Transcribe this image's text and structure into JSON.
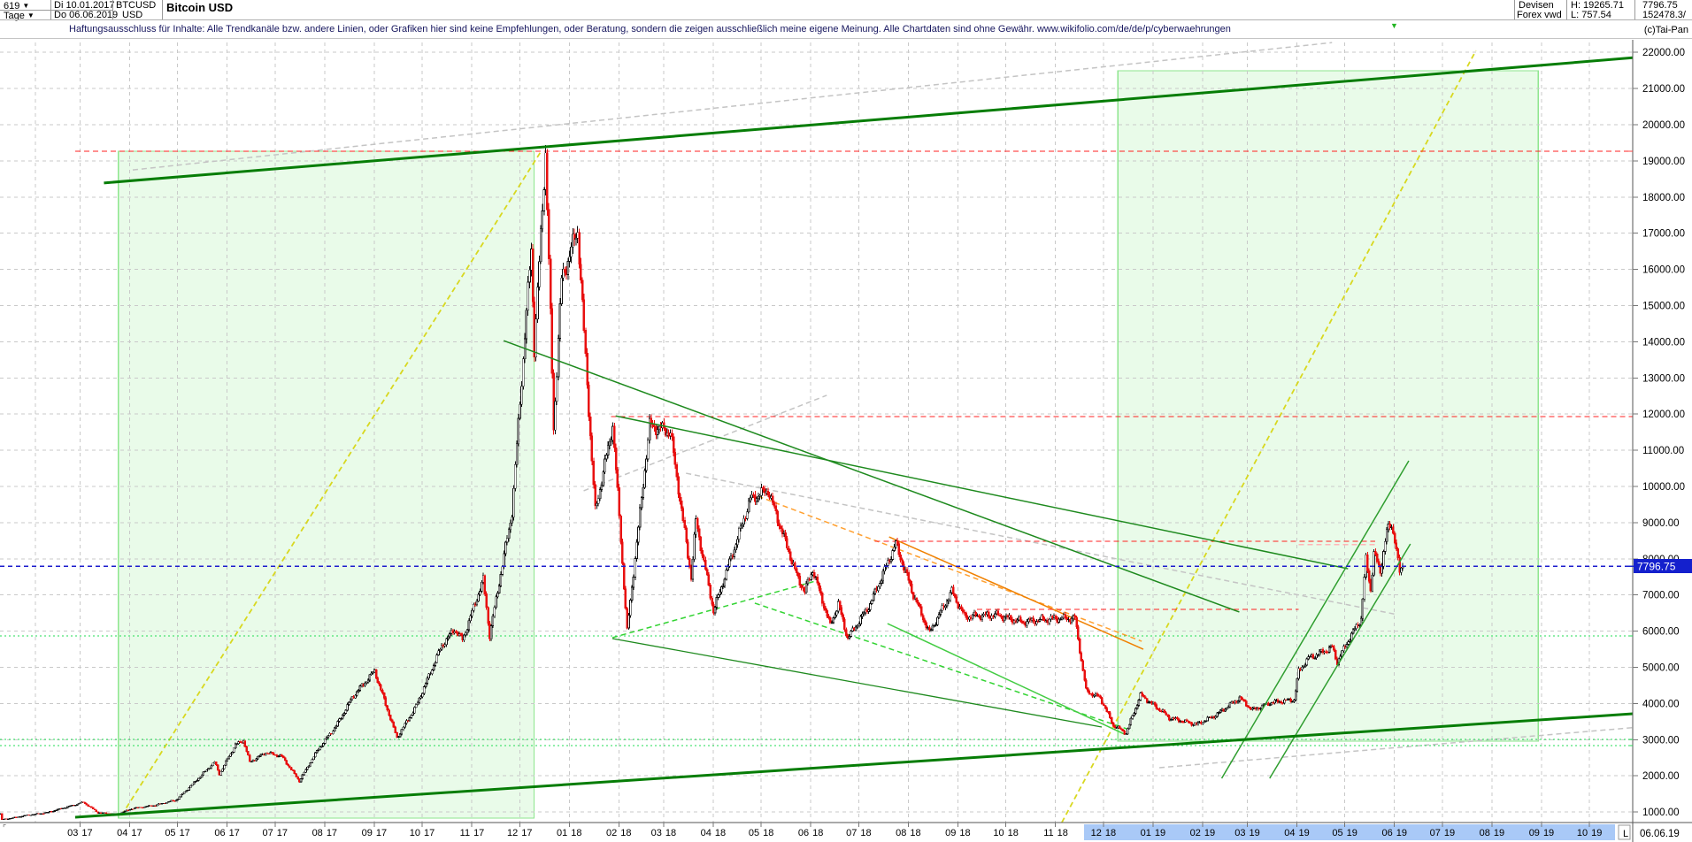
{
  "header": {
    "bars_count": "619",
    "period": "Tage",
    "date_from": "Di 10.01.2017",
    "date_to": "Do 06.06.2019",
    "symbol": "BTCUSD",
    "currency": "USD",
    "title": "Bitcoin USD",
    "category": "Devisen",
    "feed": "Forex vwd",
    "high_label": "H: 19265.71",
    "low_label": "L: 757.54",
    "last_price_text": "7796.75",
    "volume_text": "152478.3/",
    "copyright": "(c)Tai-Pan"
  },
  "disclaimer": "Haftungsausschluss für Inhalte: Alle Trendkanäle bzw. andere Linien, oder Grafiken hier sind keine Empfehlungen, oder Beratung, sondern die zeigen ausschließlich meine eigene Meinung. Alle Chartdaten sind ohne Gewähr.  www.wikifolio.com/de/de/p/cyberwaehrungen",
  "x_axis": {
    "months": [
      {
        "m": "03",
        "y": "17"
      },
      {
        "m": "04",
        "y": "17"
      },
      {
        "m": "05",
        "y": "17"
      },
      {
        "m": "06",
        "y": "17"
      },
      {
        "m": "07",
        "y": "17"
      },
      {
        "m": "08",
        "y": "17"
      },
      {
        "m": "09",
        "y": "17"
      },
      {
        "m": "10",
        "y": "17"
      },
      {
        "m": "11",
        "y": "17"
      },
      {
        "m": "12",
        "y": "17"
      },
      {
        "m": "01",
        "y": "18"
      },
      {
        "m": "02",
        "y": "18"
      },
      {
        "m": "03",
        "y": "18"
      },
      {
        "m": "04",
        "y": "18"
      },
      {
        "m": "05",
        "y": "18"
      },
      {
        "m": "06",
        "y": "18"
      },
      {
        "m": "07",
        "y": "18"
      },
      {
        "m": "08",
        "y": "18"
      },
      {
        "m": "09",
        "y": "18"
      },
      {
        "m": "10",
        "y": "18"
      },
      {
        "m": "11",
        "y": "18"
      },
      {
        "m": "12",
        "y": "18"
      },
      {
        "m": "01",
        "y": "19"
      },
      {
        "m": "02",
        "y": "19"
      },
      {
        "m": "03",
        "y": "19"
      },
      {
        "m": "04",
        "y": "19"
      },
      {
        "m": "05",
        "y": "19"
      },
      {
        "m": "06",
        "y": "19"
      },
      {
        "m": "07",
        "y": "19"
      },
      {
        "m": "08",
        "y": "19"
      },
      {
        "m": "09",
        "y": "19"
      },
      {
        "m": "10",
        "y": "19"
      }
    ],
    "end_label": "06.06.19",
    "low_marker": "L",
    "highlight_d1": 678,
    "highlight_d2": 1010
  },
  "y_axis": {
    "min": 1000,
    "max": 22000,
    "step": 1000,
    "last_price": 7796.75,
    "last_price_label": "7796.75"
  },
  "chart_data": {
    "type": "candlestick",
    "title": "Bitcoin USD",
    "start_date": "2017-01-10",
    "end_date": "2019-06-06",
    "high": 19265.71,
    "low": 757.54,
    "last": 7796.75,
    "ylim": [
      1000,
      22000
    ],
    "keypoints": [
      [
        "2017-01-10",
        950
      ],
      [
        "2017-01-11",
        790
      ],
      [
        "2017-01-17",
        830
      ],
      [
        "2017-01-25",
        900
      ],
      [
        "2017-02-09",
        990
      ],
      [
        "2017-02-24",
        1180
      ],
      [
        "2017-03-03",
        1270
      ],
      [
        "2017-03-12",
        985
      ],
      [
        "2017-03-24",
        935
      ],
      [
        "2017-04-02",
        1090
      ],
      [
        "2017-04-17",
        1190
      ],
      [
        "2017-04-30",
        1330
      ],
      [
        "2017-05-10",
        1760
      ],
      [
        "2017-05-24",
        2380
      ],
      [
        "2017-05-27",
        2050
      ],
      [
        "2017-06-06",
        2860
      ],
      [
        "2017-06-11",
        2980
      ],
      [
        "2017-06-15",
        2380
      ],
      [
        "2017-06-25",
        2640
      ],
      [
        "2017-07-05",
        2540
      ],
      [
        "2017-07-16",
        1860
      ],
      [
        "2017-07-28",
        2750
      ],
      [
        "2017-08-08",
        3380
      ],
      [
        "2017-08-18",
        4160
      ],
      [
        "2017-09-01",
        4900
      ],
      [
        "2017-09-15",
        3050
      ],
      [
        "2017-09-27",
        3920
      ],
      [
        "2017-10-13",
        5600
      ],
      [
        "2017-10-21",
        6050
      ],
      [
        "2017-10-26",
        5750
      ],
      [
        "2017-11-08",
        7420
      ],
      [
        "2017-11-12",
        5880
      ],
      [
        "2017-11-26",
        9300
      ],
      [
        "2017-12-08",
        16600
      ],
      [
        "2017-12-10",
        13800
      ],
      [
        "2017-12-17",
        19265.71
      ],
      [
        "2017-12-22",
        11600
      ],
      [
        "2017-12-27",
        15700
      ],
      [
        "2018-01-06",
        17100
      ],
      [
        "2018-01-17",
        9300
      ],
      [
        "2018-01-28",
        11700
      ],
      [
        "2018-02-06",
        6000
      ],
      [
        "2018-02-20",
        11700
      ],
      [
        "2018-03-05",
        11500
      ],
      [
        "2018-03-18",
        7500
      ],
      [
        "2018-03-21",
        9050
      ],
      [
        "2018-04-01",
        6550
      ],
      [
        "2018-04-24",
        9650
      ],
      [
        "2018-05-05",
        9900
      ],
      [
        "2018-05-23",
        7550
      ],
      [
        "2018-05-28",
        7100
      ],
      [
        "2018-06-02",
        7700
      ],
      [
        "2018-06-13",
        6150
      ],
      [
        "2018-06-18",
        6750
      ],
      [
        "2018-06-24",
        5800
      ],
      [
        "2018-07-08",
        6750
      ],
      [
        "2018-07-24",
        8420
      ],
      [
        "2018-08-04",
        7000
      ],
      [
        "2018-08-14",
        5950
      ],
      [
        "2018-08-28",
        7100
      ],
      [
        "2018-09-05",
        6400
      ],
      [
        "2018-09-25",
        6450
      ],
      [
        "2018-10-11",
        6250
      ],
      [
        "2018-10-31",
        6350
      ],
      [
        "2018-11-13",
        6350
      ],
      [
        "2018-11-20",
        4350
      ],
      [
        "2018-11-29",
        4150
      ],
      [
        "2018-12-07",
        3400
      ],
      [
        "2018-12-15",
        3180
      ],
      [
        "2018-12-24",
        4230
      ],
      [
        "2019-01-06",
        3800
      ],
      [
        "2019-01-11",
        3600
      ],
      [
        "2019-01-28",
        3420
      ],
      [
        "2019-02-08",
        3650
      ],
      [
        "2019-02-24",
        4150
      ],
      [
        "2019-03-04",
        3820
      ],
      [
        "2019-03-16",
        4030
      ],
      [
        "2019-03-30",
        4100
      ],
      [
        "2019-04-02",
        4900
      ],
      [
        "2019-04-08",
        5250
      ],
      [
        "2019-04-23",
        5550
      ],
      [
        "2019-04-26",
        5150
      ],
      [
        "2019-05-03",
        5750
      ],
      [
        "2019-05-11",
        6350
      ],
      [
        "2019-05-14",
        7980
      ],
      [
        "2019-05-17",
        7150
      ],
      [
        "2019-05-19",
        8150
      ],
      [
        "2019-05-23",
        7650
      ],
      [
        "2019-05-27",
        8750
      ],
      [
        "2019-05-30",
        8950
      ],
      [
        "2019-06-01",
        8550
      ],
      [
        "2019-06-04",
        7600
      ],
      [
        "2019-06-06",
        7796.75
      ]
    ],
    "annotations": {
      "boxes": [
        {
          "name": "trend-box-2017",
          "d1": 74,
          "p1": 19267,
          "d2": 334,
          "p2": 831
        },
        {
          "name": "trend-box-2019",
          "d1": 699,
          "p1": 21492,
          "d2": 962,
          "p2": 2958
        }
      ],
      "trendlines": [
        {
          "name": "gray-old-channel-top",
          "color": "#c4c4c4",
          "style": "dashed",
          "w": 1.5,
          "d1": 83,
          "p1": 18750,
          "d2": 833,
          "p2": 22270
        },
        {
          "name": "gray-old-line-mid",
          "color": "#c4c4c4",
          "style": "dashed",
          "w": 1.5,
          "d1": 365,
          "p1": 9880,
          "d2": 517,
          "p2": 12520
        },
        {
          "name": "gray-old-line-down",
          "color": "#c4c4c4",
          "style": "dashed",
          "w": 1.5,
          "d1": 429,
          "p1": 10365,
          "d2": 874,
          "p2": 6455
        },
        {
          "name": "gray-old-line-bottom",
          "color": "#c4c4c4",
          "style": "dashed",
          "w": 1.5,
          "d1": 725,
          "p1": 2225,
          "d2": 1051,
          "p2": 3445
        },
        {
          "name": "orange-downtrend-dashed",
          "color": "#ffa030",
          "style": "dashed",
          "w": 1.5,
          "d1": 474,
          "p1": 9730,
          "d2": 714,
          "p2": 5720
        },
        {
          "name": "orange-downtrend-solid",
          "color": "#f08000",
          "style": "solid",
          "w": 1.5,
          "d1": 556,
          "p1": 8605,
          "d2": 715,
          "p2": 5500
        },
        {
          "name": "yellow-fan-2017",
          "color": "#d8d820",
          "style": "dashed",
          "w": 1.8,
          "d1": 76,
          "p1": 905,
          "d2": 338,
          "p2": 19240
        },
        {
          "name": "yellow-fan-2019",
          "color": "#d8d820",
          "style": "dashed",
          "w": 1.8,
          "d1": 664,
          "p1": 709,
          "d2": 923,
          "p2": 22050
        },
        {
          "name": "lime-pennant-up",
          "color": "#33d433",
          "style": "dashed",
          "w": 1.5,
          "d1": 383,
          "p1": 5820,
          "d2": 510,
          "p2": 7385
        },
        {
          "name": "lime-pennant-down",
          "color": "#33d433",
          "style": "dashed",
          "w": 1.5,
          "d1": 472,
          "p1": 6775,
          "d2": 708,
          "p2": 3250
        },
        {
          "name": "lime-support-solid",
          "color": "#44cc44",
          "style": "solid",
          "w": 1.5,
          "d1": 555,
          "p1": 6210,
          "d2": 703,
          "p2": 3155
        },
        {
          "name": "green-minor-downtrend",
          "color": "#1e8a1e",
          "style": "solid",
          "w": 1.3,
          "d1": 383,
          "p1": 5795,
          "d2": 689,
          "p2": 3350
        }
      ],
      "overlays": [
        {
          "name": "green-downtrend-dec17",
          "color": "#1e8a1e",
          "style": "solid",
          "w": 1.5,
          "d1": 315,
          "p1": 14030,
          "d2": 775,
          "p2": 6530
        },
        {
          "name": "green-downtrend-mar18",
          "color": "#1e8a1e",
          "style": "solid",
          "w": 1.5,
          "d1": 385,
          "p1": 11950,
          "d2": 843,
          "p2": 7725
        },
        {
          "name": "green-steep-channel-left",
          "color": "#2f9e2f",
          "style": "solid",
          "w": 1.5,
          "d1": 764,
          "p1": 1932,
          "d2": 881,
          "p2": 10710
        },
        {
          "name": "green-steep-channel-right",
          "color": "#2f9e2f",
          "style": "solid",
          "w": 1.5,
          "d1": 794,
          "p1": 1932,
          "d2": 882,
          "p2": 8410
        },
        {
          "name": "channel-top",
          "color": "#067d06",
          "style": "solid",
          "w": 3,
          "d1": 65,
          "p1": 18390,
          "d2": 1029,
          "p2": 21880
        },
        {
          "name": "channel-bottom",
          "color": "#067d06",
          "style": "solid",
          "w": 3,
          "d1": 47,
          "p1": 856,
          "d2": 1029,
          "p2": 3740
        }
      ],
      "hlines": [
        {
          "name": "ath-line",
          "color": "#ff2020",
          "style": "dashed",
          "w": 1.2,
          "p": 19265.71,
          "d1": 47,
          "d2": 1021
        },
        {
          "name": "resistance-11950",
          "color": "#ff2020",
          "style": "dashed",
          "w": 1.2,
          "p": 11930,
          "d1": 382,
          "d2": 1021
        },
        {
          "name": "resistance-8485",
          "color": "#ff2020",
          "style": "dashed",
          "w": 1.2,
          "p": 8485,
          "d1": 547,
          "d2": 860
        },
        {
          "name": "resistance-6600",
          "color": "#ff2020",
          "style": "dashed",
          "w": 1.2,
          "p": 6600,
          "d1": 611,
          "d2": 812
        },
        {
          "name": "pink-minor-high",
          "color": "#ffb6b6",
          "style": "dashed",
          "w": 1.2,
          "p": 8390,
          "d1": 812,
          "d2": 862
        },
        {
          "name": "lime-level-5868",
          "color": "#22dd55",
          "style": "dotted",
          "w": 1.4,
          "p": 5868,
          "d1": 0,
          "d2": 1021
        },
        {
          "name": "lime-level-3007",
          "color": "#22dd55",
          "style": "dotted",
          "w": 1.4,
          "p": 3007,
          "d1": 0,
          "d2": 1021
        },
        {
          "name": "lime-level-2836",
          "color": "#22dd55",
          "style": "dotted",
          "w": 1.4,
          "p": 2836,
          "d1": 0,
          "d2": 1021
        }
      ],
      "last_price_line": {
        "name": "last-price-line",
        "color": "#1c1ccd",
        "style": "dashed",
        "w": 1.4,
        "p": 7796.75,
        "d1": 0,
        "d2": 1021
      }
    }
  },
  "colors": {
    "candle_down": "#e81010",
    "candle_up": "#111111",
    "grid": "#c9c9c9",
    "box_fill": "rgba(120,230,120,0.16)",
    "box_border": "#8ee68e",
    "axis_line": "#555555",
    "price_label_bg": "#1420cd",
    "x_highlight": "#a9c9f7"
  }
}
